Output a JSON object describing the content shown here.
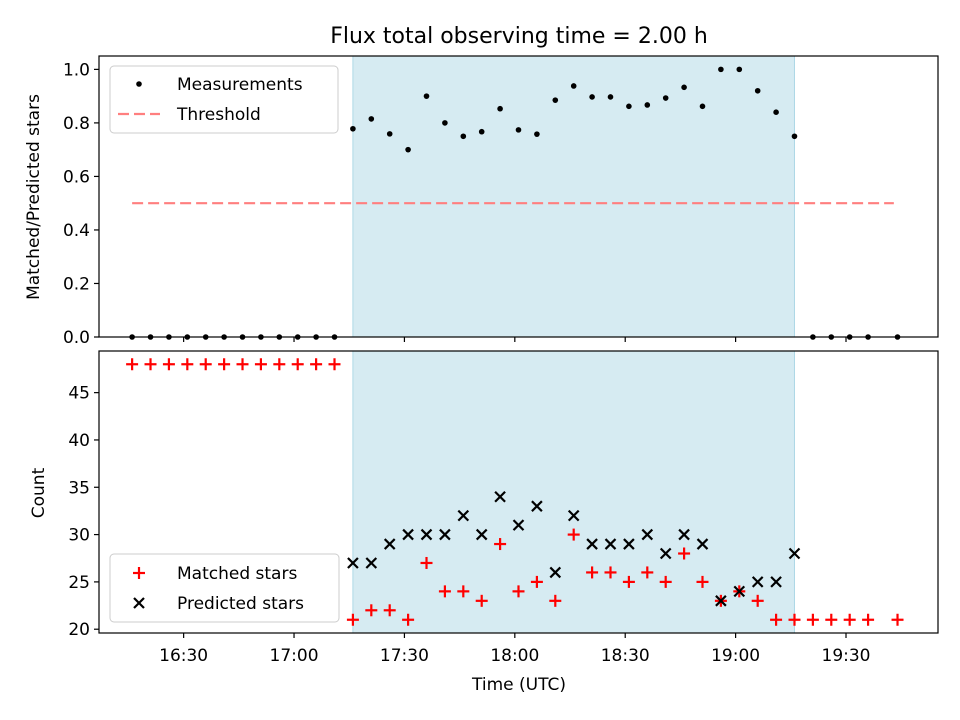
{
  "title": "Flux total observing time = 2.00 h",
  "colors": {
    "shade": "#add8e6",
    "threshold": "#ff7f7f",
    "matched": "#ff0000",
    "predicted": "#000000",
    "measurement": "#000000"
  },
  "chart_data": [
    {
      "type": "scatter",
      "panel": "top",
      "ylabel": "Matched/Predicted stars",
      "xlabel": "",
      "xlim": [
        "16:07",
        "19:55"
      ],
      "ylim": [
        0,
        1.05
      ],
      "yticks": [
        0.0,
        0.2,
        0.4,
        0.6,
        0.8,
        1.0
      ],
      "ytick_labels": [
        "0.0",
        "0.2",
        "0.4",
        "0.6",
        "0.8",
        "1.0"
      ],
      "grid": false,
      "legend_position": "top-left",
      "shaded_interval": [
        "17:16",
        "19:16"
      ],
      "threshold": {
        "name": "Threshold",
        "value": 0.5,
        "x_range": [
          "16:16",
          "19:43"
        ]
      },
      "series": [
        {
          "name": "Measurements",
          "x": [
            "16:16",
            "16:21",
            "16:26",
            "16:31",
            "16:36",
            "16:41",
            "16:46",
            "16:51",
            "16:56",
            "17:01",
            "17:06",
            "17:11",
            "17:16",
            "17:21",
            "17:26",
            "17:31",
            "17:36",
            "17:41",
            "17:46",
            "17:51",
            "17:56",
            "18:01",
            "18:06",
            "18:11",
            "18:16",
            "18:21",
            "18:26",
            "18:31",
            "18:36",
            "18:41",
            "18:46",
            "18:51",
            "18:56",
            "19:01",
            "19:06",
            "19:11",
            "19:16",
            "19:21",
            "19:26",
            "19:31",
            "19:36",
            "19:44"
          ],
          "y": [
            0,
            0,
            0,
            0,
            0,
            0,
            0,
            0,
            0,
            0,
            0,
            0,
            0.778,
            0.815,
            0.759,
            0.7,
            0.9,
            0.8,
            0.75,
            0.767,
            0.853,
            0.774,
            0.758,
            0.885,
            0.938,
            0.897,
            0.897,
            0.862,
            0.867,
            0.893,
            0.933,
            0.862,
            1.0,
            1.0,
            0.92,
            0.84,
            0.75,
            0,
            0,
            0,
            0,
            0
          ]
        }
      ]
    },
    {
      "type": "scatter",
      "panel": "bottom",
      "ylabel": "Count",
      "xlabel": "Time (UTC)",
      "xlim": [
        "16:07",
        "19:55"
      ],
      "ylim": [
        19.6,
        49.4
      ],
      "yticks": [
        20,
        25,
        30,
        35,
        40,
        45
      ],
      "ytick_labels": [
        "20",
        "25",
        "30",
        "35",
        "40",
        "45"
      ],
      "xticks": [
        "16:30",
        "17:00",
        "17:30",
        "18:00",
        "18:30",
        "19:00",
        "19:30"
      ],
      "xtick_labels": [
        "16:30",
        "17:00",
        "17:30",
        "18:00",
        "18:30",
        "19:00",
        "19:30"
      ],
      "grid": false,
      "legend_position": "lower-left",
      "shaded_interval": [
        "17:16",
        "19:16"
      ],
      "series": [
        {
          "name": "Matched stars",
          "marker": "plus",
          "x": [
            "16:16",
            "16:21",
            "16:26",
            "16:31",
            "16:36",
            "16:41",
            "16:46",
            "16:51",
            "16:56",
            "17:01",
            "17:06",
            "17:11",
            "17:16",
            "17:21",
            "17:26",
            "17:31",
            "17:36",
            "17:41",
            "17:46",
            "17:51",
            "17:56",
            "18:01",
            "18:06",
            "18:11",
            "18:16",
            "18:21",
            "18:26",
            "18:31",
            "18:36",
            "18:41",
            "18:46",
            "18:51",
            "18:56",
            "19:01",
            "19:06",
            "19:11",
            "19:16",
            "19:21",
            "19:26",
            "19:31",
            "19:36",
            "19:44"
          ],
          "y": [
            48,
            48,
            48,
            48,
            48,
            48,
            48,
            48,
            48,
            48,
            48,
            48,
            21,
            22,
            22,
            21,
            27,
            24,
            24,
            23,
            29,
            24,
            25,
            23,
            30,
            26,
            26,
            25,
            26,
            25,
            28,
            25,
            23,
            24,
            23,
            21,
            21,
            21,
            21,
            21,
            21,
            21
          ]
        },
        {
          "name": "Predicted stars",
          "marker": "x",
          "x": [
            "17:16",
            "17:21",
            "17:26",
            "17:31",
            "17:36",
            "17:41",
            "17:46",
            "17:51",
            "17:56",
            "18:01",
            "18:06",
            "18:11",
            "18:16",
            "18:21",
            "18:26",
            "18:31",
            "18:36",
            "18:41",
            "18:46",
            "18:51",
            "18:56",
            "19:01",
            "19:06",
            "19:11",
            "19:16"
          ],
          "y": [
            27,
            27,
            29,
            30,
            30,
            30,
            32,
            30,
            34,
            31,
            33,
            26,
            32,
            29,
            29,
            29,
            30,
            28,
            30,
            29,
            23,
            24,
            25,
            25,
            28
          ]
        }
      ]
    }
  ]
}
